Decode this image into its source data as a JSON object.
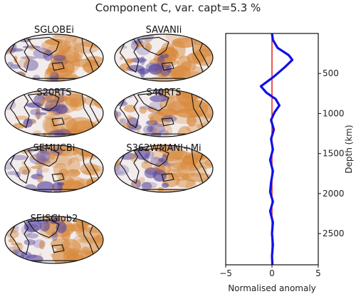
{
  "figure": {
    "title": "Component C, var. capt=5.3 %"
  },
  "maps": [
    {
      "name": "SGLOBEi"
    },
    {
      "name": "SAVANIi"
    },
    {
      "name": "S20RTS"
    },
    {
      "name": "S40RTS"
    },
    {
      "name": "SEMUCBi"
    },
    {
      "name": "S362WMANI+Mi"
    },
    {
      "name": "SEISGlob2"
    }
  ],
  "colors": {
    "positive": "#d8893b",
    "negative": "#5b4aa0",
    "coast": "#111111",
    "profile": "#1010e6",
    "reference": "#e02020"
  },
  "chart_data": {
    "type": "line",
    "xlabel": "Normalised anomaly",
    "ylabel": "Depth (km)",
    "xlim": [
      -5,
      5
    ],
    "ylim": [
      2890,
      0
    ],
    "x_ticks": [
      -5,
      0,
      5
    ],
    "y_ticks": [
      500,
      1000,
      1500,
      2000,
      2500
    ],
    "series": [
      {
        "points": [
          [
            0,
            0
          ],
          [
            0.1,
            80
          ],
          [
            0.6,
            180
          ],
          [
            1.8,
            270
          ],
          [
            2.2,
            330
          ],
          [
            1.4,
            420
          ],
          [
            0.2,
            540
          ],
          [
            -1.2,
            660
          ],
          [
            -0.6,
            740
          ],
          [
            0.4,
            820
          ],
          [
            0.8,
            900
          ],
          [
            0.3,
            980
          ],
          [
            -0.1,
            1080
          ],
          [
            0.2,
            1200
          ],
          [
            -0.1,
            1320
          ],
          [
            0.1,
            1450
          ],
          [
            -0.2,
            1580
          ],
          [
            0.1,
            1720
          ],
          [
            -0.1,
            1860
          ],
          [
            -0.2,
            1980
          ],
          [
            0.1,
            2100
          ],
          [
            -0.2,
            2220
          ],
          [
            0.1,
            2360
          ],
          [
            0.0,
            2500
          ],
          [
            0.1,
            2640
          ],
          [
            0.0,
            2780
          ],
          [
            0.05,
            2890
          ]
        ]
      },
      {
        "points": [
          [
            0,
            0
          ],
          [
            0,
            2890
          ]
        ]
      }
    ]
  }
}
